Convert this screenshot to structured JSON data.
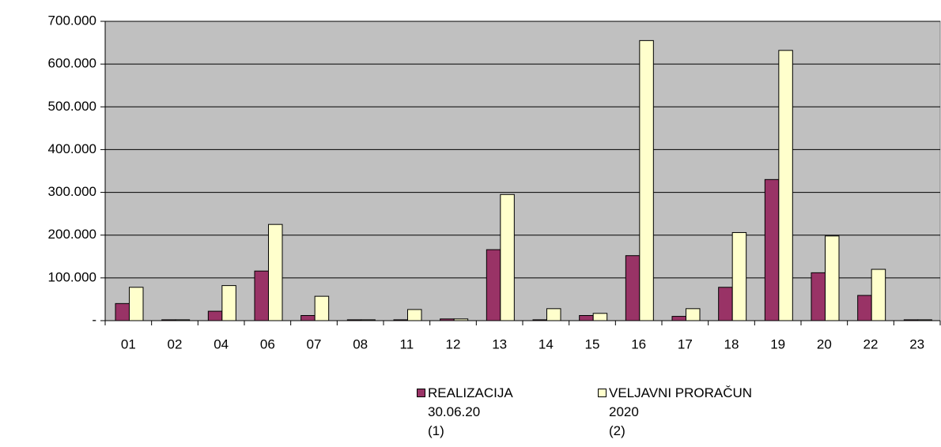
{
  "chart_data": {
    "type": "bar",
    "categories": [
      "01",
      "02",
      "04",
      "06",
      "07",
      "08",
      "11",
      "12",
      "13",
      "14",
      "15",
      "16",
      "17",
      "18",
      "19",
      "20",
      "22",
      "23"
    ],
    "series": [
      {
        "name": "REALIZACIJA\n30.06.20\n(1)",
        "color": "#993366",
        "values": [
          40000,
          2000,
          22000,
          116000,
          12000,
          2000,
          2000,
          4000,
          166000,
          2000,
          12000,
          152000,
          10000,
          78000,
          330000,
          112000,
          59000,
          2000
        ]
      },
      {
        "name": "VELJAVNI PRORAČUN\n2020\n(2)",
        "color": "#FFFFCC",
        "values": [
          78000,
          2000,
          82000,
          225000,
          57000,
          2000,
          26000,
          4000,
          295000,
          28000,
          17000,
          655000,
          28000,
          206000,
          632000,
          198000,
          120000,
          2000
        ]
      }
    ],
    "ylim": [
      0,
      700000
    ],
    "yticks": [
      {
        "value": 0,
        "label": "-"
      },
      {
        "value": 100000,
        "label": "100.000"
      },
      {
        "value": 200000,
        "label": "200.000"
      },
      {
        "value": 300000,
        "label": "300.000"
      },
      {
        "value": 400000,
        "label": "400.000"
      },
      {
        "value": 500000,
        "label": "500.000"
      },
      {
        "value": 600000,
        "label": "600.000"
      },
      {
        "value": 700000,
        "label": "700.000"
      }
    ],
    "grid": true,
    "plot_background": "#C0C0C0",
    "legend": "bottom"
  }
}
